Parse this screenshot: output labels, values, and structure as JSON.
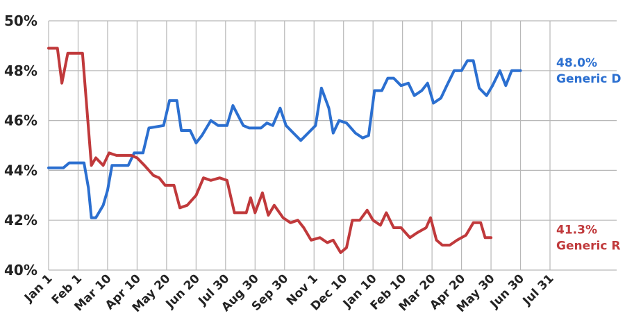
{
  "chart_data": {
    "type": "line",
    "title": "",
    "xlabel": "",
    "ylabel": "",
    "ylim": [
      40,
      50
    ],
    "yticks": [
      40,
      42,
      44,
      46,
      48,
      50
    ],
    "ytick_format": "{v}%",
    "grid": true,
    "x_categories": [
      "Jan 1",
      "Feb 1",
      "Mar 10",
      "Apr 10",
      "May 20",
      "Jun 20",
      "Jul 30",
      "Aug 30",
      "Sep 30",
      "Nov 1",
      "Dec 10",
      "Jan 10",
      "Feb 10",
      "Mar 20",
      "Apr 20",
      "May 30",
      "Jun 30",
      "Jul 31"
    ],
    "series": [
      {
        "name": "Generic D",
        "end_label": "48.0%",
        "color": "#2b6fd0",
        "points": [
          [
            0,
            44.1
          ],
          [
            0.5,
            44.1
          ],
          [
            0.7,
            44.3
          ],
          [
            1.2,
            44.3
          ],
          [
            1.35,
            43.3
          ],
          [
            1.45,
            42.1
          ],
          [
            1.6,
            42.1
          ],
          [
            1.85,
            42.6
          ],
          [
            2.0,
            43.2
          ],
          [
            2.15,
            44.2
          ],
          [
            2.7,
            44.2
          ],
          [
            2.9,
            44.7
          ],
          [
            3.2,
            44.7
          ],
          [
            3.4,
            45.7
          ],
          [
            3.9,
            45.8
          ],
          [
            4.1,
            46.8
          ],
          [
            4.35,
            46.8
          ],
          [
            4.5,
            45.6
          ],
          [
            4.8,
            45.6
          ],
          [
            5.0,
            45.1
          ],
          [
            5.2,
            45.4
          ],
          [
            5.5,
            46.0
          ],
          [
            5.75,
            45.8
          ],
          [
            6.05,
            45.8
          ],
          [
            6.25,
            46.6
          ],
          [
            6.6,
            45.8
          ],
          [
            6.8,
            45.7
          ],
          [
            7.2,
            45.7
          ],
          [
            7.4,
            45.9
          ],
          [
            7.6,
            45.8
          ],
          [
            7.85,
            46.5
          ],
          [
            8.05,
            45.8
          ],
          [
            8.3,
            45.5
          ],
          [
            8.55,
            45.2
          ],
          [
            8.8,
            45.5
          ],
          [
            9.05,
            45.8
          ],
          [
            9.25,
            47.3
          ],
          [
            9.5,
            46.5
          ],
          [
            9.65,
            45.5
          ],
          [
            9.85,
            46.0
          ],
          [
            10.1,
            45.9
          ],
          [
            10.4,
            45.5
          ],
          [
            10.65,
            45.3
          ],
          [
            10.85,
            45.4
          ],
          [
            11.05,
            47.2
          ],
          [
            11.3,
            47.2
          ],
          [
            11.5,
            47.7
          ],
          [
            11.7,
            47.7
          ],
          [
            11.95,
            47.4
          ],
          [
            12.2,
            47.5
          ],
          [
            12.4,
            47.0
          ],
          [
            12.65,
            47.2
          ],
          [
            12.85,
            47.5
          ],
          [
            13.05,
            46.7
          ],
          [
            13.3,
            46.9
          ],
          [
            13.5,
            47.4
          ],
          [
            13.75,
            48.0
          ],
          [
            14.0,
            48.0
          ],
          [
            14.2,
            48.4
          ],
          [
            14.4,
            48.4
          ],
          [
            14.6,
            47.3
          ],
          [
            14.85,
            47.0
          ],
          [
            15.05,
            47.4
          ],
          [
            15.3,
            48.0
          ],
          [
            15.5,
            47.4
          ],
          [
            15.7,
            48.0
          ],
          [
            16.0,
            48.0
          ]
        ]
      },
      {
        "name": "Generic R",
        "end_label": "41.3%",
        "color": "#c0393b",
        "points": [
          [
            0,
            48.9
          ],
          [
            0.3,
            48.9
          ],
          [
            0.45,
            47.5
          ],
          [
            0.65,
            48.7
          ],
          [
            1.15,
            48.7
          ],
          [
            1.45,
            44.2
          ],
          [
            1.6,
            44.5
          ],
          [
            1.85,
            44.2
          ],
          [
            2.05,
            44.7
          ],
          [
            2.3,
            44.6
          ],
          [
            2.8,
            44.6
          ],
          [
            3.0,
            44.5
          ],
          [
            3.25,
            44.2
          ],
          [
            3.55,
            43.8
          ],
          [
            3.75,
            43.7
          ],
          [
            3.95,
            43.4
          ],
          [
            4.25,
            43.4
          ],
          [
            4.45,
            42.5
          ],
          [
            4.7,
            42.6
          ],
          [
            5.0,
            43.0
          ],
          [
            5.25,
            43.7
          ],
          [
            5.5,
            43.6
          ],
          [
            5.8,
            43.7
          ],
          [
            6.05,
            43.6
          ],
          [
            6.3,
            42.3
          ],
          [
            6.7,
            42.3
          ],
          [
            6.85,
            42.9
          ],
          [
            7.0,
            42.3
          ],
          [
            7.25,
            43.1
          ],
          [
            7.45,
            42.2
          ],
          [
            7.65,
            42.6
          ],
          [
            7.95,
            42.1
          ],
          [
            8.2,
            41.9
          ],
          [
            8.45,
            42.0
          ],
          [
            8.65,
            41.7
          ],
          [
            8.9,
            41.2
          ],
          [
            9.2,
            41.3
          ],
          [
            9.45,
            41.1
          ],
          [
            9.65,
            41.2
          ],
          [
            9.9,
            40.7
          ],
          [
            10.1,
            40.9
          ],
          [
            10.3,
            42.0
          ],
          [
            10.55,
            42.0
          ],
          [
            10.8,
            42.4
          ],
          [
            11.0,
            42.0
          ],
          [
            11.25,
            41.8
          ],
          [
            11.45,
            42.3
          ],
          [
            11.7,
            41.7
          ],
          [
            11.95,
            41.7
          ],
          [
            12.25,
            41.3
          ],
          [
            12.5,
            41.5
          ],
          [
            12.8,
            41.7
          ],
          [
            12.95,
            42.1
          ],
          [
            13.15,
            41.2
          ],
          [
            13.35,
            41.0
          ],
          [
            13.6,
            41.0
          ],
          [
            13.85,
            41.2
          ],
          [
            14.15,
            41.4
          ],
          [
            14.4,
            41.9
          ],
          [
            14.65,
            41.9
          ],
          [
            14.8,
            41.3
          ],
          [
            15.0,
            41.3
          ]
        ]
      }
    ]
  }
}
